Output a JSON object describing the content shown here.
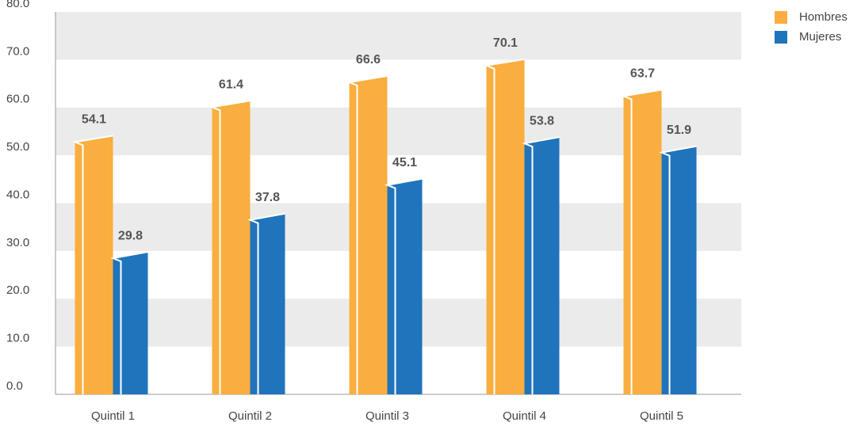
{
  "chart_data": {
    "type": "bar",
    "categories": [
      "Quintil 1",
      "Quintil 2",
      "Quintil 3",
      "Quintil 4",
      "Quintil 5"
    ],
    "series": [
      {
        "name": "Hombres",
        "color": "#F9AE3F",
        "values": [
          54.1,
          61.4,
          66.6,
          70.1,
          63.7
        ]
      },
      {
        "name": "Mujeres",
        "color": "#1F74BC",
        "values": [
          29.8,
          37.8,
          45.1,
          53.8,
          51.9
        ]
      }
    ],
    "ylim": [
      0,
      80
    ],
    "yticks": [
      {
        "value": 0,
        "label": "0.0"
      },
      {
        "value": 10,
        "label": "10.0"
      },
      {
        "value": 20,
        "label": "20.0"
      },
      {
        "value": 30,
        "label": "30.0"
      },
      {
        "value": 40,
        "label": "40.0"
      },
      {
        "value": 50,
        "label": "50.0"
      },
      {
        "value": 60,
        "label": "60.0"
      },
      {
        "value": 70,
        "label": "70.0"
      },
      {
        "value": 80,
        "label": "80.0"
      }
    ],
    "grid": true
  }
}
